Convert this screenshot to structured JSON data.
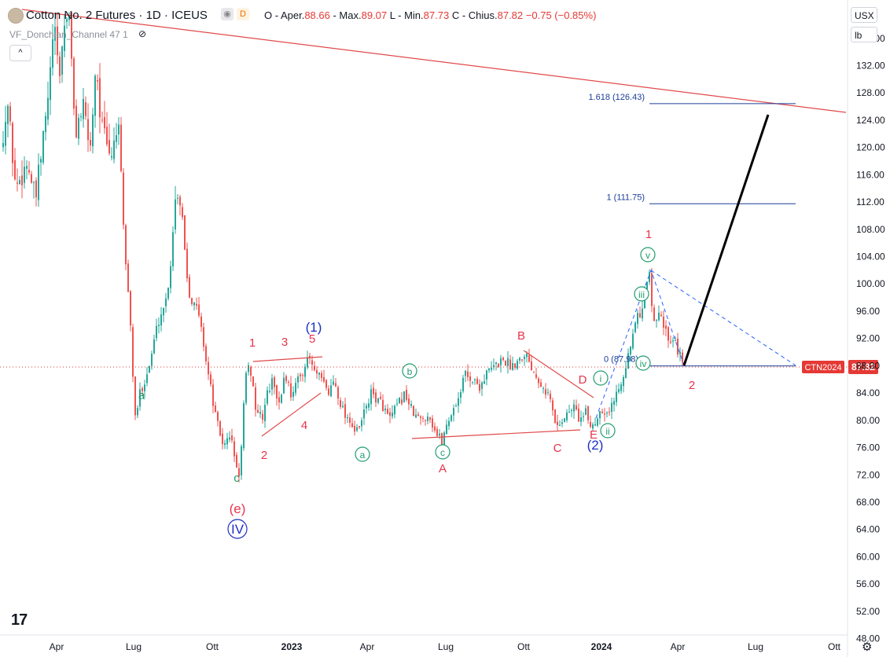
{
  "header": {
    "title": "Cotton No. 2 Futures · 1D · ICEUS",
    "ohlc": [
      {
        "label": "O - Aper.",
        "value": "88.66"
      },
      {
        "label": "- Max.",
        "value": "89.07"
      },
      {
        "label": "L - Min.",
        "value": "87.73"
      },
      {
        "label": "C - Chius.",
        "value": "87.82"
      },
      {
        "label": "",
        "value": "−0.75 (−0.85%)"
      }
    ],
    "badge_d": "D",
    "indicator": "VF_Donchian_Channel 47 1",
    "collapse_label": "^"
  },
  "right_panel": {
    "currency": "USX",
    "unit": "lb"
  },
  "colors": {
    "up": "#26a69a",
    "down": "#ef5350",
    "wave_red": "#e8344a",
    "wave_blue": "#1c2fc4",
    "wave_green": "#1f9d6e",
    "fib": "#1c3d99",
    "price_tag": "#e53935",
    "trendline": "#e04a4a"
  },
  "chart_data": {
    "type": "candlestick",
    "y_axis": {
      "range": [
        45.3,
        140.7
      ],
      "ticks": [
        136.0,
        132.0,
        128.0,
        124.0,
        120.0,
        116.0,
        112.0,
        108.0,
        104.0,
        100.0,
        96.0,
        92.0,
        88.0,
        84.0,
        80.0,
        76.0,
        72.0,
        68.0,
        64.0,
        60.0,
        56.0,
        52.0,
        48.0
      ]
    },
    "x_axis": {
      "ticks": [
        "Apr",
        "Lug",
        "Ott",
        "2023",
        "Apr",
        "Lug",
        "Ott",
        "2024",
        "Apr",
        "Lug",
        "Ott"
      ],
      "bold": [
        "2023",
        "2024"
      ]
    },
    "last_price": {
      "symbol": "CTN2024",
      "value": "87.82",
      "price": 87.82
    },
    "path": [
      [
        0,
        120
      ],
      [
        10,
        126
      ],
      [
        20,
        114
      ],
      [
        35,
        118
      ],
      [
        45,
        112
      ],
      [
        60,
        126
      ],
      [
        65,
        132
      ],
      [
        68,
        138
      ],
      [
        72,
        134
      ],
      [
        75,
        130
      ],
      [
        82,
        138
      ],
      [
        88,
        140
      ],
      [
        95,
        122
      ],
      [
        105,
        126
      ],
      [
        115,
        120
      ],
      [
        122,
        133
      ],
      [
        128,
        124
      ],
      [
        140,
        118
      ],
      [
        150,
        124
      ],
      [
        158,
        106
      ],
      [
        165,
        96
      ],
      [
        172,
        80
      ],
      [
        178,
        84
      ],
      [
        190,
        88
      ],
      [
        200,
        94
      ],
      [
        212,
        98
      ],
      [
        218,
        104
      ],
      [
        222,
        112
      ],
      [
        227,
        114
      ],
      [
        232,
        110
      ],
      [
        237,
        102
      ],
      [
        242,
        98
      ],
      [
        252,
        96
      ],
      [
        258,
        92
      ],
      [
        266,
        86
      ],
      [
        275,
        80
      ],
      [
        285,
        76
      ],
      [
        292,
        78
      ],
      [
        298,
        75
      ],
      [
        303,
        71
      ],
      [
        307,
        76
      ],
      [
        312,
        86
      ],
      [
        318,
        88
      ],
      [
        325,
        82
      ],
      [
        333,
        80
      ],
      [
        340,
        84
      ],
      [
        348,
        86
      ],
      [
        355,
        82
      ],
      [
        362,
        87
      ],
      [
        370,
        84
      ],
      [
        380,
        86
      ],
      [
        387,
        88
      ],
      [
        394,
        89
      ],
      [
        400,
        87
      ],
      [
        408,
        86
      ],
      [
        418,
        84
      ],
      [
        425,
        86
      ],
      [
        432,
        83
      ],
      [
        438,
        81
      ],
      [
        446,
        80
      ],
      [
        452,
        78
      ],
      [
        458,
        79
      ],
      [
        465,
        82
      ],
      [
        473,
        84
      ],
      [
        480,
        83
      ],
      [
        488,
        82
      ],
      [
        495,
        80
      ],
      [
        505,
        82
      ],
      [
        515,
        84
      ],
      [
        525,
        81
      ],
      [
        535,
        80
      ],
      [
        545,
        81
      ],
      [
        555,
        78
      ],
      [
        562,
        77
      ],
      [
        570,
        80
      ],
      [
        578,
        82
      ],
      [
        585,
        84
      ],
      [
        592,
        87
      ],
      [
        600,
        86
      ],
      [
        610,
        85
      ],
      [
        620,
        87
      ],
      [
        630,
        88
      ],
      [
        640,
        89
      ],
      [
        650,
        88
      ],
      [
        660,
        89
      ],
      [
        668,
        90
      ],
      [
        680,
        87
      ],
      [
        692,
        85
      ],
      [
        700,
        83
      ],
      [
        707,
        79
      ],
      [
        714,
        80
      ],
      [
        722,
        81
      ],
      [
        730,
        82
      ],
      [
        738,
        80
      ],
      [
        745,
        81
      ],
      [
        752,
        79
      ],
      [
        758,
        80
      ],
      [
        765,
        82
      ],
      [
        772,
        81
      ],
      [
        778,
        82
      ],
      [
        784,
        84
      ],
      [
        790,
        86
      ],
      [
        798,
        89
      ],
      [
        805,
        92
      ],
      [
        810,
        96
      ],
      [
        815,
        94
      ],
      [
        820,
        99
      ],
      [
        826,
        102
      ],
      [
        830,
        96
      ],
      [
        835,
        94
      ],
      [
        840,
        96
      ],
      [
        846,
        93
      ],
      [
        852,
        92
      ],
      [
        858,
        92
      ],
      [
        863,
        90
      ],
      [
        868,
        88
      ]
    ],
    "fib_levels": [
      {
        "label": "1.618 (126.43)",
        "price": 126.43
      },
      {
        "label": "1 (111.75)",
        "price": 111.75
      },
      {
        "label": "0 (87.98)",
        "price": 87.98
      }
    ],
    "wave_labels": [
      {
        "text": "a",
        "color": "green",
        "style": "plain"
      },
      {
        "text": "c",
        "color": "green",
        "style": "plain"
      },
      {
        "text": "(e)",
        "color": "red",
        "style": "plain"
      },
      {
        "text": "IV",
        "color": "blue",
        "style": "circle"
      },
      {
        "text": "1",
        "color": "red",
        "style": "plain"
      },
      {
        "text": "2",
        "color": "red",
        "style": "plain"
      },
      {
        "text": "3",
        "color": "red",
        "style": "plain"
      },
      {
        "text": "4",
        "color": "red",
        "style": "plain"
      },
      {
        "text": "5",
        "color": "red",
        "style": "plain"
      },
      {
        "text": "(1)",
        "color": "blue",
        "style": "plain"
      },
      {
        "text": "a",
        "color": "green",
        "style": "circle"
      },
      {
        "text": "b",
        "color": "green",
        "style": "circle"
      },
      {
        "text": "c",
        "color": "green",
        "style": "circle"
      },
      {
        "text": "A",
        "color": "red",
        "style": "plain"
      },
      {
        "text": "B",
        "color": "red",
        "style": "plain"
      },
      {
        "text": "C",
        "color": "red",
        "style": "plain"
      },
      {
        "text": "D",
        "color": "red",
        "style": "plain"
      },
      {
        "text": "E",
        "color": "red",
        "style": "plain"
      },
      {
        "text": "(2)",
        "color": "blue",
        "style": "plain"
      },
      {
        "text": "i",
        "color": "green",
        "style": "circle"
      },
      {
        "text": "ii",
        "color": "green",
        "style": "circle"
      },
      {
        "text": "iii",
        "color": "green",
        "style": "circle"
      },
      {
        "text": "iv",
        "color": "green",
        "style": "circle"
      },
      {
        "text": "v",
        "color": "green",
        "style": "circle"
      },
      {
        "text": "1",
        "color": "red",
        "style": "plain"
      },
      {
        "text": "2",
        "color": "red",
        "style": "plain"
      }
    ]
  }
}
